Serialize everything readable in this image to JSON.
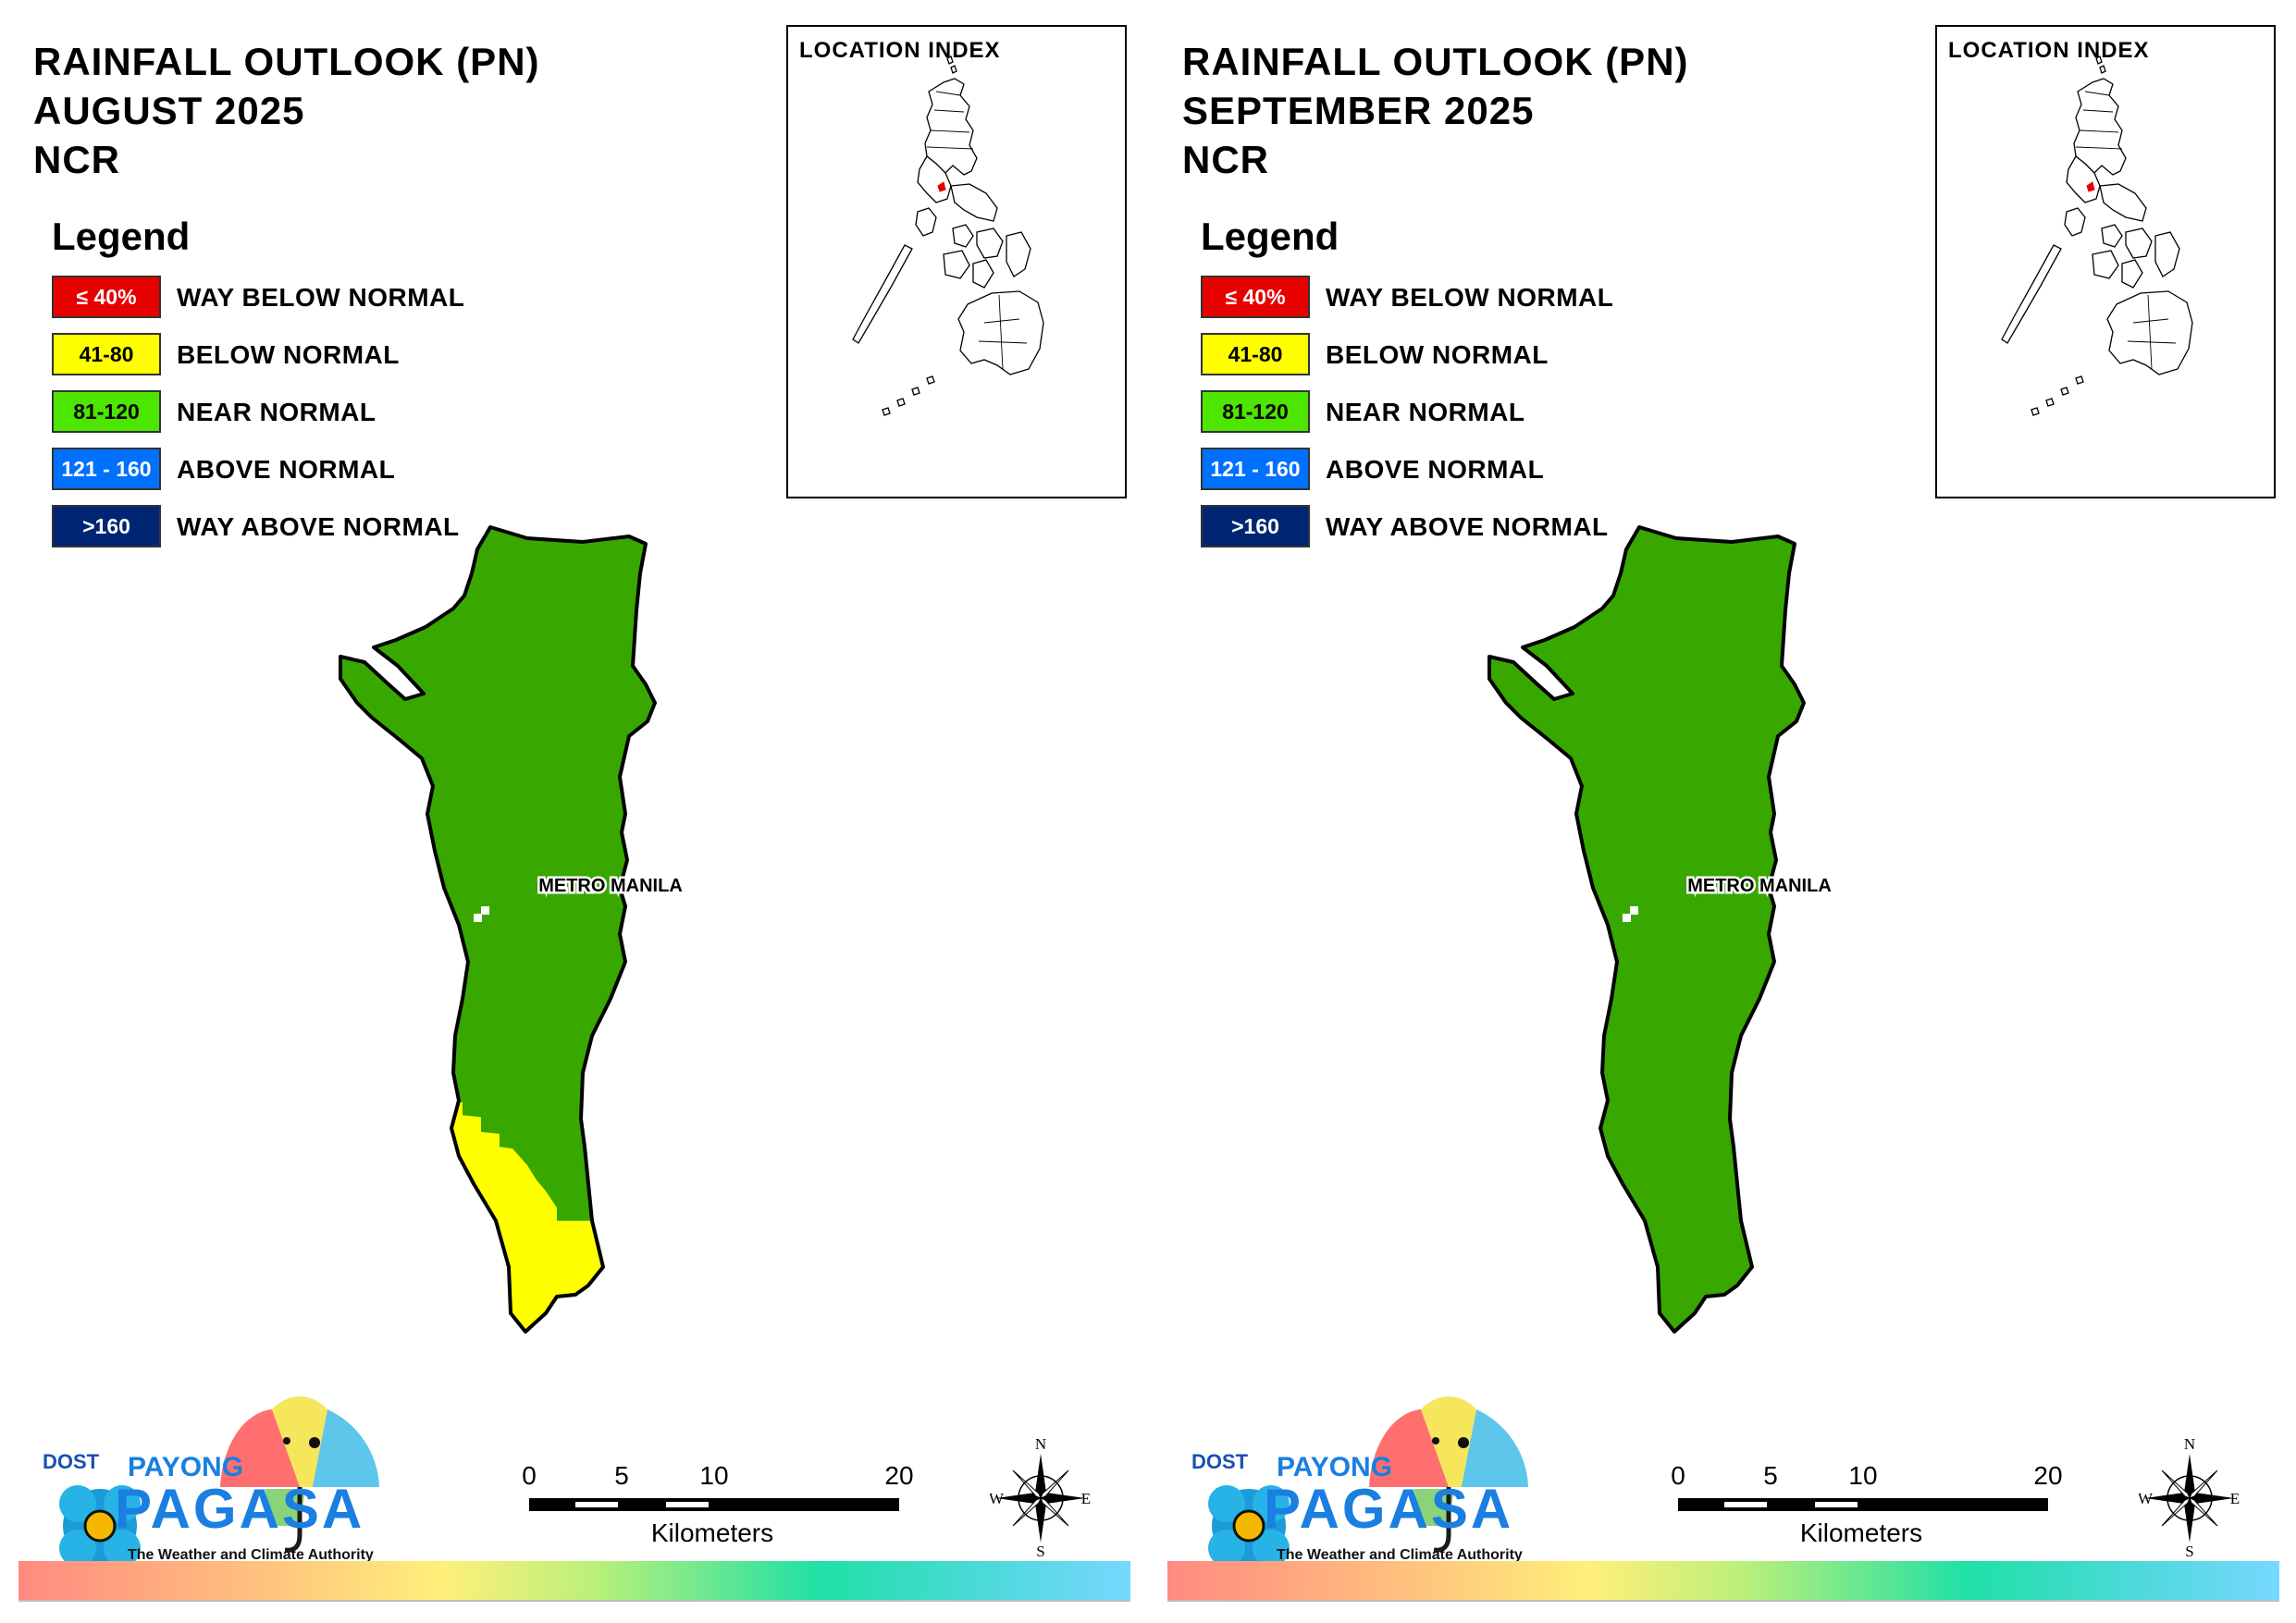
{
  "panels": [
    {
      "title_line1": "RAINFALL OUTLOOK (PN)",
      "title_line2": "AUGUST 2025",
      "title_line3": "NCR",
      "legend_title": "Legend",
      "legend": [
        {
          "code": "≤ 40%",
          "label": "WAY BELOW NORMAL",
          "color": "#e60000",
          "text_color": "#ffffff"
        },
        {
          "code": "41-80",
          "label": "BELOW NORMAL",
          "color": "#ffff00",
          "text_color": "#000000"
        },
        {
          "code": "81-120",
          "label": "NEAR NORMAL",
          "color": "#4ce600",
          "text_color": "#000000"
        },
        {
          "code": "121 - 160",
          "label": "ABOVE NORMAL",
          "color": "#0070ff",
          "text_color": "#ffffff"
        },
        {
          "code": ">160",
          "label": "WAY ABOVE NORMAL",
          "color": "#002673",
          "text_color": "#ffffff"
        }
      ],
      "location_index_title": "LOCATION INDEX",
      "region_label": "METRO MANILA",
      "south_category": "41-80",
      "north_category": "81-120",
      "south_color": "#ffff00",
      "north_color": "#38a800",
      "scale_ticks": [
        "0",
        "5",
        "10",
        "20"
      ],
      "scale_unit": "Kilometers",
      "compass": {
        "n": "N",
        "s": "S",
        "e": "E",
        "w": "W"
      },
      "logo": {
        "dost": "DOST",
        "payong": "PAYONG",
        "pagasa": "PAGASA",
        "tagline": "The Weather and Climate Authority"
      }
    },
    {
      "title_line1": "RAINFALL OUTLOOK (PN)",
      "title_line2": "SEPTEMBER 2025",
      "title_line3": "NCR",
      "legend_title": "Legend",
      "legend": [
        {
          "code": "≤ 40%",
          "label": "WAY BELOW NORMAL",
          "color": "#e60000",
          "text_color": "#ffffff"
        },
        {
          "code": "41-80",
          "label": "BELOW NORMAL",
          "color": "#ffff00",
          "text_color": "#000000"
        },
        {
          "code": "81-120",
          "label": "NEAR NORMAL",
          "color": "#4ce600",
          "text_color": "#000000"
        },
        {
          "code": "121 - 160",
          "label": "ABOVE NORMAL",
          "color": "#0070ff",
          "text_color": "#ffffff"
        },
        {
          "code": ">160",
          "label": "WAY ABOVE NORMAL",
          "color": "#002673",
          "text_color": "#ffffff"
        }
      ],
      "location_index_title": "LOCATION INDEX",
      "region_label": "METRO MANILA",
      "south_category": "81-120",
      "north_category": "81-120",
      "south_color": "#38a800",
      "north_color": "#38a800",
      "scale_ticks": [
        "0",
        "5",
        "10",
        "20"
      ],
      "scale_unit": "Kilometers",
      "compass": {
        "n": "N",
        "s": "S",
        "e": "E",
        "w": "W"
      },
      "logo": {
        "dost": "DOST",
        "payong": "PAYONG",
        "pagasa": "PAGASA",
        "tagline": "The Weather and Climate Authority"
      }
    }
  ]
}
